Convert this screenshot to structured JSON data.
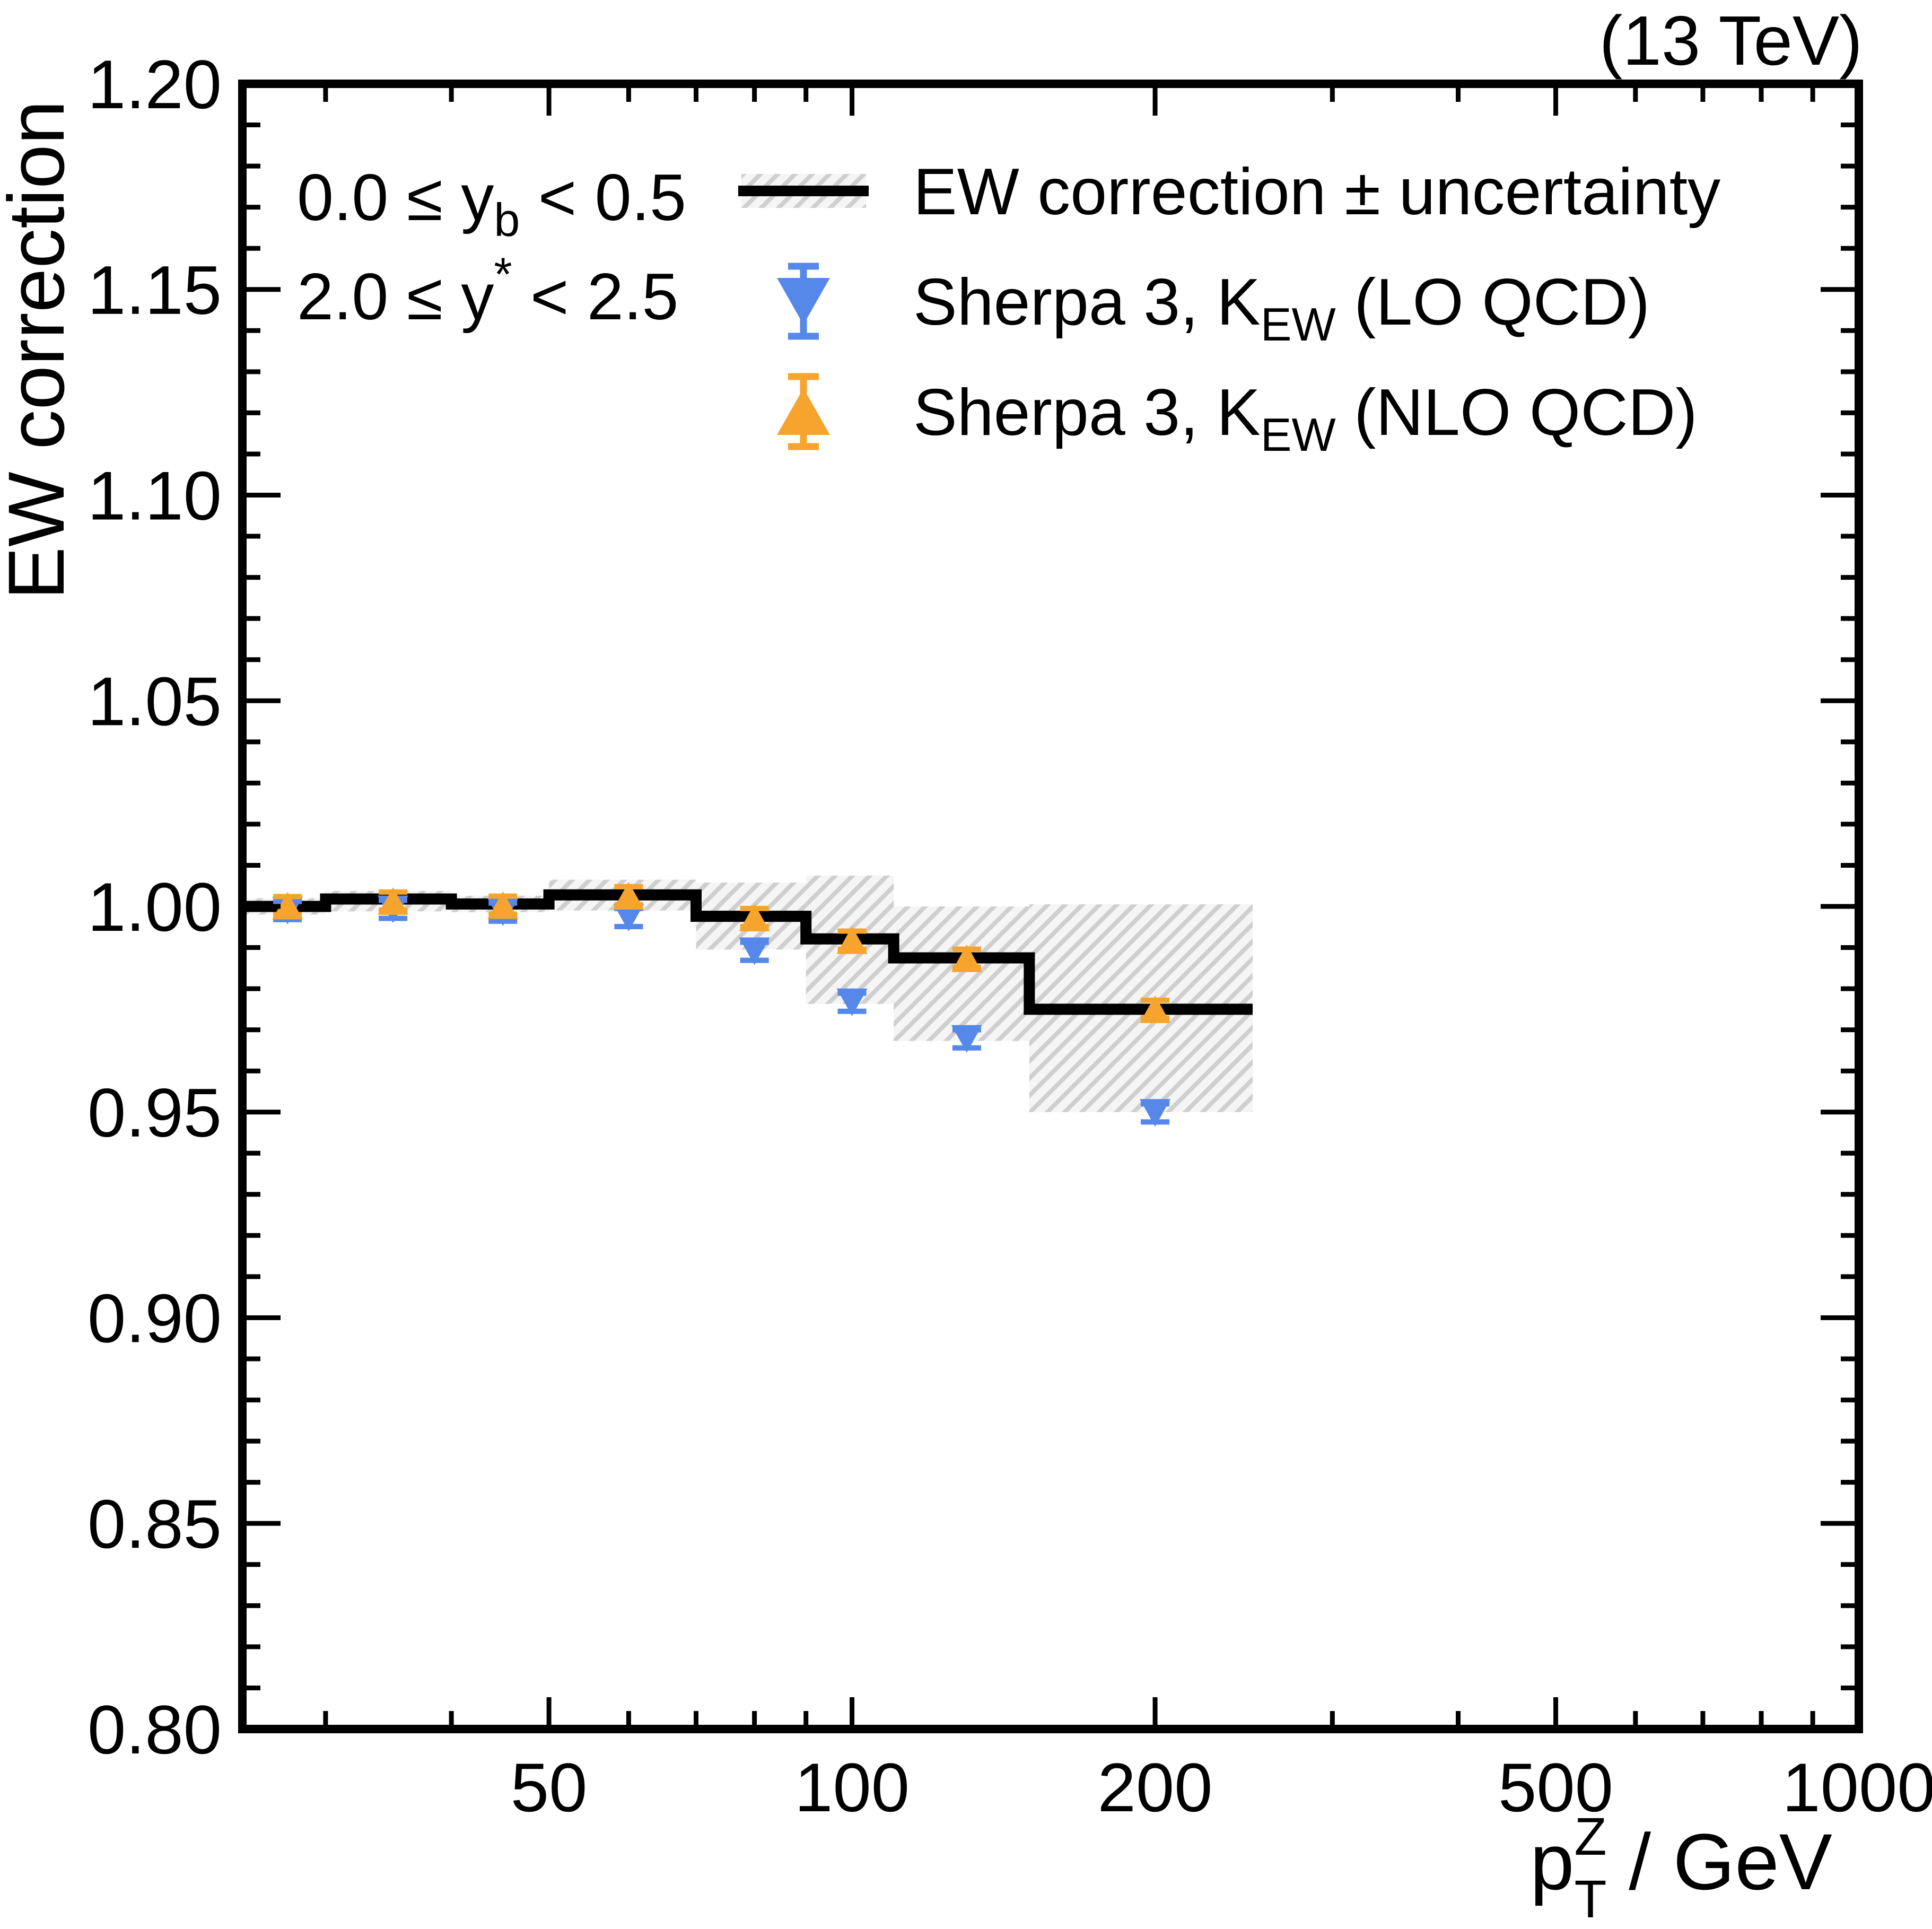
{
  "chart_data": {
    "type": "line",
    "subtype": "step-line-with-uncertainty-band-and-marker-series",
    "title_right": "(13 TeV)",
    "ylabel": "EW correction",
    "xlabel_parts": [
      {
        "text": "p"
      },
      {
        "text": "Z",
        "style": "sup"
      },
      {
        "text": "T",
        "style": "sub",
        "stack": true
      },
      {
        "text": " / GeV"
      }
    ],
    "annotations": [
      {
        "parts": [
          {
            "text": "0.0 "
          },
          {
            "text": "≤"
          },
          {
            "text": " y"
          },
          {
            "text": "b",
            "style": "sub"
          },
          {
            "text": " < 0.5"
          }
        ]
      },
      {
        "parts": [
          {
            "text": "2.0 "
          },
          {
            "text": "≤"
          },
          {
            "text": " y"
          },
          {
            "text": "*",
            "style": "sup"
          },
          {
            "text": " < 2.5"
          }
        ]
      }
    ],
    "axes": {
      "x": {
        "scale": "log",
        "min": 24.8,
        "max": 1000,
        "major_ticks": [
          50,
          100,
          200,
          500,
          1000
        ],
        "major_tick_labels": [
          "50",
          "100",
          "200",
          "500",
          "1000"
        ],
        "minor_ticks": [
          30,
          40,
          60,
          70,
          80,
          90,
          300,
          400,
          600,
          700,
          800,
          900
        ]
      },
      "y": {
        "scale": "linear",
        "min": 0.8,
        "max": 1.2,
        "major_ticks": [
          0.8,
          0.85,
          0.9,
          0.95,
          1.0,
          1.05,
          1.1,
          1.15,
          1.2
        ],
        "major_tick_labels": [
          "0.80",
          "0.85",
          "0.90",
          "0.95",
          "1.00",
          "1.05",
          "1.10",
          "1.15",
          "1.20"
        ],
        "minor_step": 0.01
      }
    },
    "bin_edges": [
      25,
      30,
      40,
      50,
      70,
      90,
      110,
      150,
      250
    ],
    "ew_correction_line": [
      1.0,
      1.0018,
      1.0006,
      1.0028,
      0.9976,
      0.9921,
      0.9875,
      0.975
    ],
    "uncertainty_band": {
      "low": [
        0.998,
        0.9988,
        0.9986,
        0.999,
        0.9895,
        0.9763,
        0.9673,
        0.95
      ],
      "high": [
        1.002,
        1.0038,
        1.0026,
        1.0065,
        1.0058,
        1.0075,
        1.0,
        1.0005
      ]
    },
    "series": [
      {
        "name": "lo-qcd",
        "label_parts": [
          {
            "text": "Sherpa 3, K"
          },
          {
            "text": "EW",
            "style": "sub"
          },
          {
            "text": " (LO QCD)"
          }
        ],
        "marker": "triangle-down",
        "color": "#5588e8",
        "x": [
          27.5,
          35,
          45,
          60,
          80,
          100,
          130,
          200
        ],
        "y": [
          0.999,
          0.9993,
          0.9986,
          0.9973,
          0.9891,
          0.9767,
          0.9678,
          0.9498
        ],
        "yerr": 0.0022
      },
      {
        "name": "nlo-qcd",
        "label_parts": [
          {
            "text": "Sherpa 3, K"
          },
          {
            "text": "EW",
            "style": "sub"
          },
          {
            "text": " (NLO QCD)"
          }
        ],
        "marker": "triangle-up",
        "color": "#f6a42d",
        "x": [
          27.5,
          35,
          45,
          60,
          80,
          100,
          130,
          200
        ],
        "y": [
          1.0002,
          1.0013,
          1.0003,
          1.0026,
          0.9973,
          0.9918,
          0.9874,
          0.975
        ],
        "yerr": 0.0022
      }
    ],
    "legend": [
      {
        "icon": "band-line",
        "label_parts": [
          {
            "text": "EW correction ± uncertainty"
          }
        ]
      },
      {
        "icon": "marker",
        "series": 0
      },
      {
        "icon": "marker",
        "series": 1
      }
    ],
    "colors": {
      "line": "#000000",
      "band_stripe": "#cfcfcf",
      "band_bg": "#f5f5f5",
      "frame": "#000000"
    }
  }
}
